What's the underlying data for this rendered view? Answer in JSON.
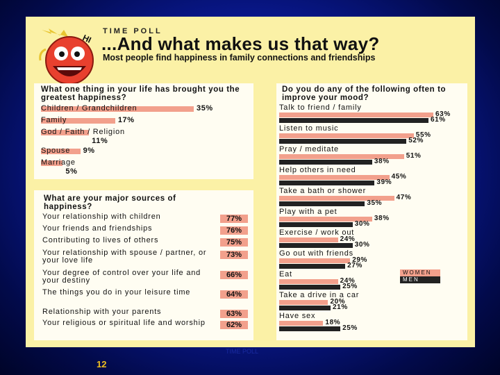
{
  "header": {
    "kicker": "TIME POLL",
    "title": "...And what makes us that way?",
    "subtitle": "Most people find happiness in family connections and friendships"
  },
  "slide_number": "12",
  "source_note": "TIME POLL",
  "colors": {
    "women": "#f2a08c",
    "men": "#222222",
    "panel": "#fbf1a6",
    "box": "#fffdf2"
  },
  "chart_data": [
    {
      "type": "bar",
      "title": "What one thing in your life has brought you the greatest happiness?",
      "categories": [
        "Children / Grandchildren",
        "Family",
        "God / Faith / Religion",
        "Spouse",
        "Marriage"
      ],
      "values": [
        35,
        17,
        11,
        9,
        5
      ],
      "value_labels": [
        "35%",
        "17%",
        "11%",
        "9%",
        "5%"
      ],
      "xlim": [
        0,
        35
      ],
      "grid": false
    },
    {
      "type": "table",
      "title": "What are your major sources of happiness?",
      "rows": [
        {
          "label": "Your relationship with children",
          "value": 77,
          "value_label": "77%"
        },
        {
          "label": "Your friends and friendships",
          "value": 76,
          "value_label": "76%"
        },
        {
          "label": "Contributing to lives of others",
          "value": 75,
          "value_label": "75%"
        },
        {
          "label": "Your relationship with spouse / partner, or your love life",
          "value": 73,
          "value_label": "73%"
        },
        {
          "label": "Your degree of control over your life and your destiny",
          "value": 66,
          "value_label": "66%"
        },
        {
          "label": "The things you do in your leisure time",
          "value": 64,
          "value_label": "64%"
        },
        {
          "label": "Relationship with your parents",
          "value": 63,
          "value_label": "63%"
        },
        {
          "label": "Your religious or spiritual life and worship",
          "value": 62,
          "value_label": "62%"
        }
      ]
    },
    {
      "type": "bar",
      "title": "Do you do any of the following often to improve your mood?",
      "categories": [
        "Talk to friend / family",
        "Listen to music",
        "Pray / meditate",
        "Help others in need",
        "Take a bath or shower",
        "Play with a pet",
        "Exercise / work out",
        "Go out with friends",
        "Eat",
        "Take a drive in a car",
        "Have sex"
      ],
      "series": [
        {
          "name": "WOMEN",
          "values": [
            63,
            55,
            51,
            45,
            47,
            38,
            24,
            29,
            24,
            20,
            18
          ],
          "value_labels": [
            "63%",
            "55%",
            "51%",
            "45%",
            "47%",
            "38%",
            "24%",
            "29%",
            "24%",
            "20%",
            "18%"
          ]
        },
        {
          "name": "MEN",
          "values": [
            61,
            52,
            38,
            39,
            35,
            30,
            30,
            27,
            25,
            21,
            25
          ],
          "value_labels": [
            "61%",
            "52%",
            "38%",
            "39%",
            "35%",
            "30%",
            "30%",
            "27%",
            "25%",
            "21%",
            "25%"
          ]
        }
      ],
      "xlim": [
        0,
        63
      ],
      "legend": "right",
      "grid": false
    }
  ]
}
